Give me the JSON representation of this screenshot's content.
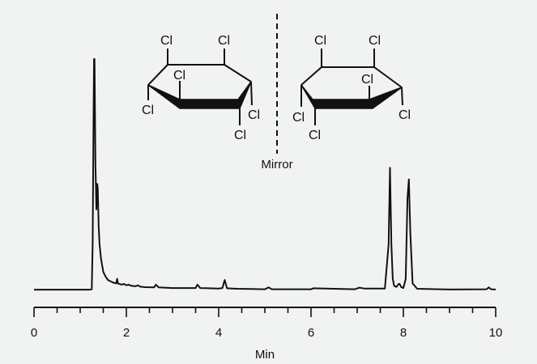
{
  "chart_data": {
    "type": "line",
    "xlabel": "Min",
    "ylabel": "",
    "xlim": [
      0,
      10
    ],
    "ylim": [
      0,
      100
    ],
    "x_ticks": [
      0,
      2,
      4,
      6,
      8,
      10
    ],
    "x_tick_labels": [
      "0",
      "2",
      "4",
      "6",
      "8",
      "10"
    ],
    "grid": false,
    "series": [
      {
        "x": [
          0.0,
          1.2,
          1.25,
          1.27,
          1.29,
          1.3,
          1.31,
          1.33,
          1.35,
          1.37,
          1.38,
          1.4,
          1.42,
          1.45,
          1.5,
          1.55,
          1.6,
          1.7,
          1.78,
          1.8,
          1.82,
          1.9,
          1.95,
          2.0,
          2.05,
          2.1,
          2.2,
          2.25,
          2.3,
          2.4,
          2.6,
          2.64,
          2.7,
          3.0,
          3.5,
          3.54,
          3.6,
          4.0,
          4.08,
          4.13,
          4.18,
          4.4,
          4.7,
          5.0,
          5.08,
          5.15,
          6.0,
          6.05,
          6.95,
          7.05,
          7.15,
          7.6,
          7.68,
          7.71,
          7.74,
          7.77,
          7.8,
          7.85,
          7.9,
          7.92,
          7.95,
          8.0,
          8.05,
          8.09,
          8.12,
          8.15,
          8.2,
          8.3,
          9.0,
          9.8,
          9.85,
          9.9,
          10.0
        ],
        "y": [
          0.3,
          0.3,
          0.5,
          20,
          75,
          100,
          100,
          55,
          35,
          46,
          44,
          28,
          20,
          14,
          8,
          6,
          4.5,
          3.5,
          3,
          5,
          3,
          2.5,
          2.8,
          2.2,
          2.5,
          2,
          1.8,
          2.2,
          1.6,
          1.4,
          1.3,
          2.5,
          1.3,
          1,
          1,
          2.5,
          1,
          0.8,
          1,
          4.5,
          0.9,
          0.7,
          0.6,
          0.5,
          1.3,
          0.5,
          0.5,
          0.9,
          0.5,
          1.2,
          0.8,
          0.8,
          20,
          53,
          20,
          5,
          2,
          1.5,
          2.8,
          2.8,
          1.5,
          1,
          5,
          40,
          48,
          25,
          3,
          0.7,
          0.4,
          0.5,
          1.3,
          0.5,
          0.4
        ]
      }
    ]
  },
  "structure": {
    "mirror_label": "Mirror",
    "atom_label": "Cl"
  }
}
